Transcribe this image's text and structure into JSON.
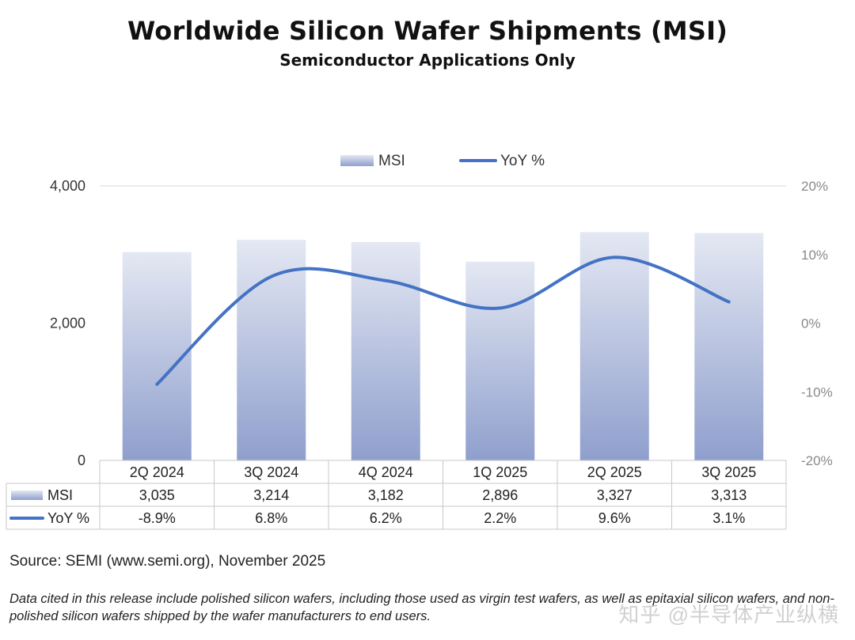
{
  "title": "Worldwide Silicon Wafer Shipments (MSI)",
  "subtitle": "Semiconductor Applications Only",
  "chart_data": {
    "type": "bar",
    "categories": [
      "2Q 2024",
      "3Q 2024",
      "4Q 2024",
      "1Q 2025",
      "2Q 2025",
      "3Q 2025"
    ],
    "series": [
      {
        "name": "MSI",
        "type": "bar",
        "axis": "left",
        "values": [
          3035,
          3214,
          3182,
          2896,
          3327,
          3313
        ],
        "labels": [
          "3,035",
          "3,214",
          "3,182",
          "2,896",
          "3,327",
          "3,313"
        ]
      },
      {
        "name": "YoY %",
        "type": "line",
        "axis": "right",
        "values": [
          -8.9,
          6.8,
          6.2,
          2.2,
          9.6,
          3.1
        ],
        "labels": [
          "-8.9%",
          "6.8%",
          "6.2%",
          "2.2%",
          "9.6%",
          "3.1%"
        ]
      }
    ],
    "y_left": {
      "min": 0,
      "max": 4000,
      "ticks": [
        0,
        2000,
        4000
      ],
      "tick_labels": [
        "0",
        "2,000",
        "4,000"
      ]
    },
    "y_right": {
      "min": -20,
      "max": 20,
      "ticks": [
        -20,
        -10,
        0,
        10,
        20
      ],
      "tick_labels": [
        "-20%",
        "-10%",
        "0%",
        "10%",
        "20%"
      ]
    },
    "grid": "top-only",
    "legend": "top-center",
    "data_table": true,
    "colors": {
      "bar_top": "#e4e8f3",
      "bar_bottom": "#8f9fcd",
      "line": "#4472c4",
      "grid": "#d9d9d9"
    }
  },
  "source": "Source: SEMI (www.semi.org), November 2025",
  "footnote": "Data cited in this release include polished silicon wafers, including those used as virgin test wafers, as well as epitaxial silicon wafers, and non-polished silicon wafers shipped by the wafer manufacturers to end users.",
  "watermark": "知乎 @半导体产业纵横"
}
